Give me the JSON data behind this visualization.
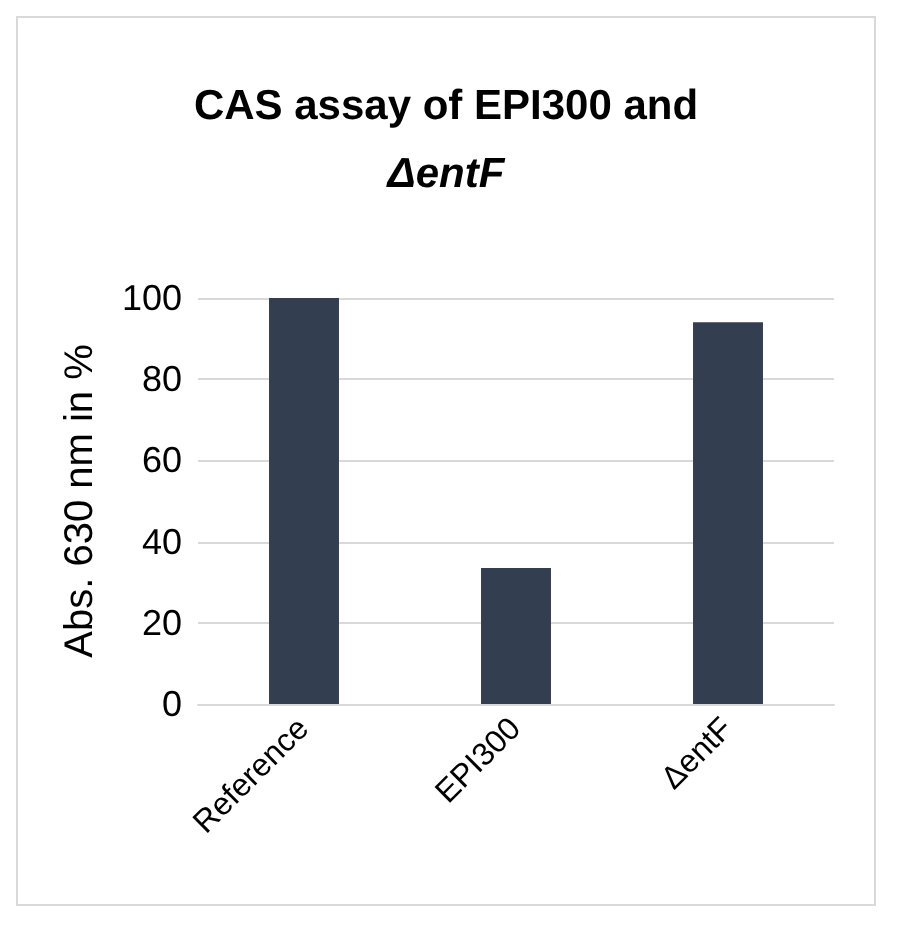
{
  "chart_data": {
    "type": "bar",
    "title": "CAS assay of EPI300 and ΔentF",
    "ylabel": "Abs. 630 nm in %",
    "categories": [
      "Reference",
      "EPI300",
      "ΔentF"
    ],
    "values": [
      100,
      33.5,
      94
    ],
    "color": "#333f50",
    "ylim": [
      0,
      100
    ],
    "yticks": [
      0,
      20,
      40,
      60,
      80,
      100
    ],
    "grid": "y"
  }
}
